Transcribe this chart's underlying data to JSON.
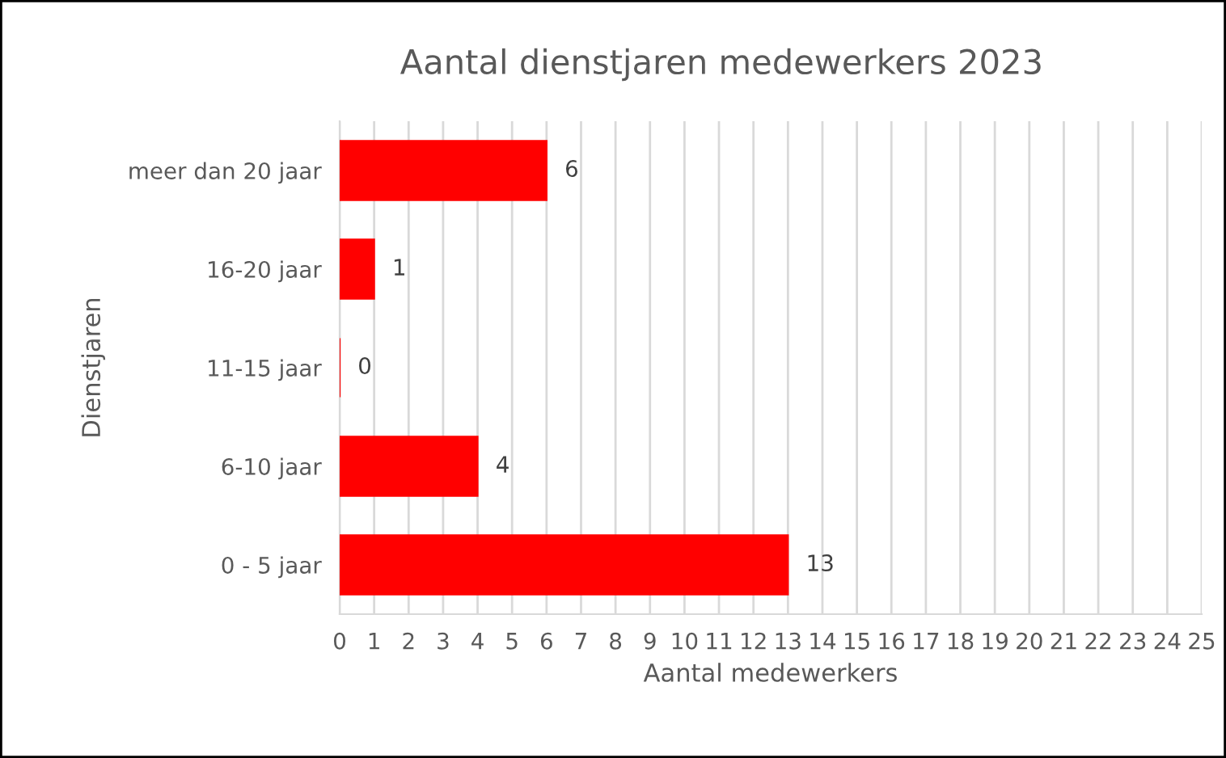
{
  "chart_data": {
    "type": "bar",
    "orientation": "horizontal",
    "title": "Aantal dienstjaren medewerkers 2023",
    "xlabel": "Aantal medewerkers",
    "ylabel": "Dienstjaren",
    "categories": [
      "meer dan 20 jaar",
      "16-20 jaar",
      "11-15 jaar",
      "6-10 jaar",
      "0 - 5 jaar"
    ],
    "values": [
      6,
      1,
      0,
      4,
      13
    ],
    "color": "#ff0000",
    "xlim": [
      0,
      25
    ],
    "xticks": [
      0,
      1,
      2,
      3,
      4,
      5,
      6,
      7,
      8,
      9,
      10,
      11,
      12,
      13,
      14,
      15,
      16,
      17,
      18,
      19,
      20,
      21,
      22,
      23,
      24,
      25
    ],
    "grid": "x",
    "data_labels": true,
    "legend": false
  }
}
